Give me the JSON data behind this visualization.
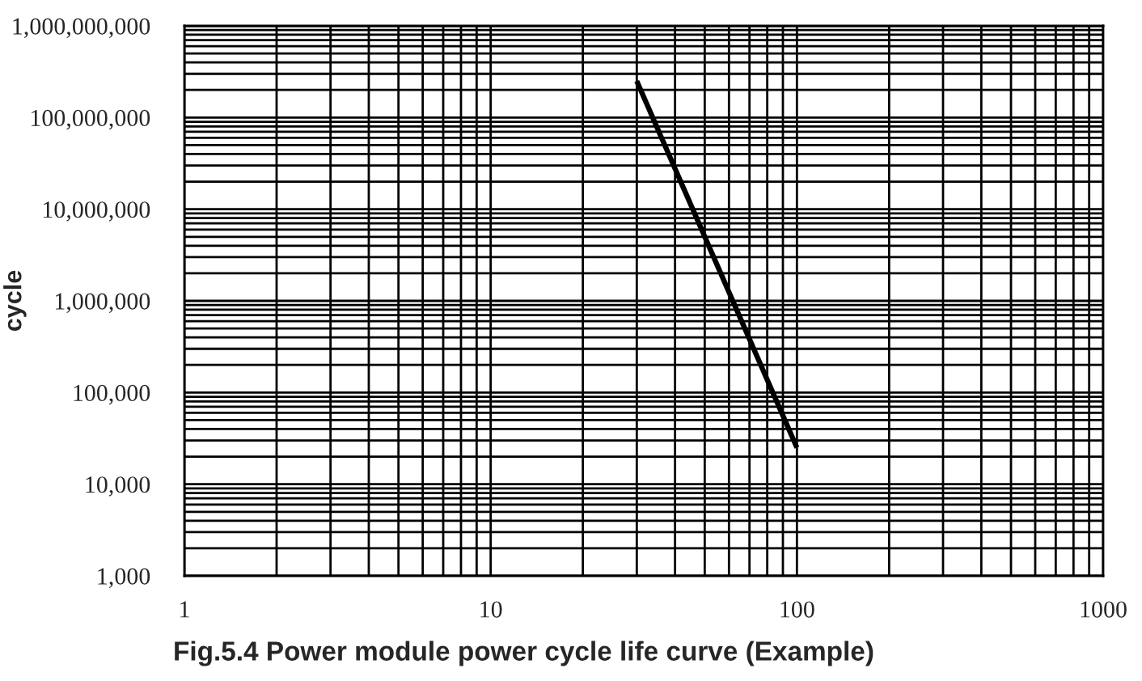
{
  "chart_data": {
    "type": "line",
    "title": "Fig.5.4 Power module power cycle life curve (Example)",
    "ylabel": "cycle",
    "series": [
      {
        "color": "#000000",
        "x": [
          30,
          100
        ],
        "values": [
          250000000,
          25000
        ]
      }
    ],
    "log": "xy",
    "xlim": [
      1,
      1000
    ],
    "xticks": [
      1,
      10,
      100,
      1000
    ],
    "ylim": [
      1000,
      1000000000
    ],
    "yticks": [
      {
        "value": 1000,
        "label": "1,000"
      },
      {
        "value": 10000,
        "label": "10,000"
      },
      {
        "value": 100000,
        "label": "100,000"
      },
      {
        "value": 1000000,
        "label": "1,000,000"
      },
      {
        "value": 10000000,
        "label": "10,000,000"
      },
      {
        "value": 100000000,
        "label": "100,000,000"
      },
      {
        "value": 1000000000,
        "label": "1,000,000,000"
      }
    ],
    "grid": true,
    "marker": "none",
    "line_style": "solid"
  }
}
